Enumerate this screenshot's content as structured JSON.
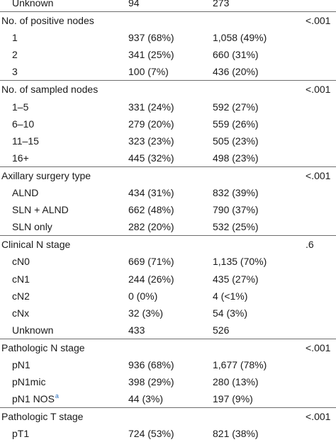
{
  "rows": [
    {
      "kind": "item",
      "label": "Unknown",
      "a": "94",
      "b": "273",
      "p": ""
    },
    {
      "kind": "section",
      "label": "No. of positive nodes",
      "a": "",
      "b": "",
      "p": "<.001"
    },
    {
      "kind": "item",
      "label": "1",
      "a": "937 (68%)",
      "b": "1,058 (49%)",
      "p": ""
    },
    {
      "kind": "item",
      "label": "2",
      "a": "341 (25%)",
      "b": "660 (31%)",
      "p": ""
    },
    {
      "kind": "item",
      "label": "3",
      "a": "100 (7%)",
      "b": "436 (20%)",
      "p": ""
    },
    {
      "kind": "section",
      "label": "No. of sampled nodes",
      "a": "",
      "b": "",
      "p": "<.001"
    },
    {
      "kind": "item",
      "label": "1–5",
      "a": "331 (24%)",
      "b": "592 (27%)",
      "p": ""
    },
    {
      "kind": "item",
      "label": "6–10",
      "a": "279 (20%)",
      "b": "559 (26%)",
      "p": ""
    },
    {
      "kind": "item",
      "label": "11–15",
      "a": "323 (23%)",
      "b": "505 (23%)",
      "p": ""
    },
    {
      "kind": "item",
      "label": "16+",
      "a": "445 (32%)",
      "b": "498 (23%)",
      "p": ""
    },
    {
      "kind": "section",
      "label": "Axillary surgery type",
      "a": "",
      "b": "",
      "p": "<.001"
    },
    {
      "kind": "item",
      "label": "ALND",
      "a": "434 (31%)",
      "b": "832 (39%)",
      "p": ""
    },
    {
      "kind": "item",
      "label": "SLN + ALND",
      "a": "662 (48%)",
      "b": "790 (37%)",
      "p": ""
    },
    {
      "kind": "item",
      "label": "SLN only",
      "a": "282 (20%)",
      "b": "532 (25%)",
      "p": ""
    },
    {
      "kind": "section",
      "label": "Clinical N stage",
      "a": "",
      "b": "",
      "p": ".6"
    },
    {
      "kind": "item",
      "label": "cN0",
      "a": "669 (71%)",
      "b": "1,135 (70%)",
      "p": ""
    },
    {
      "kind": "item",
      "label": "cN1",
      "a": "244 (26%)",
      "b": "435 (27%)",
      "p": ""
    },
    {
      "kind": "item",
      "label": "cN2",
      "a": "0 (0%)",
      "b": "4 (<1%)",
      "p": ""
    },
    {
      "kind": "item",
      "label": "cNx",
      "a": "32 (3%)",
      "b": "54 (3%)",
      "p": ""
    },
    {
      "kind": "item",
      "label": "Unknown",
      "a": "433",
      "b": "526",
      "p": ""
    },
    {
      "kind": "section",
      "label": "Pathologic N stage",
      "a": "",
      "b": "",
      "p": "<.001"
    },
    {
      "kind": "item",
      "label": "pN1",
      "a": "936 (68%)",
      "b": "1,677 (78%)",
      "p": ""
    },
    {
      "kind": "item",
      "label": "pN1mic",
      "a": "398 (29%)",
      "b": "280 (13%)",
      "p": ""
    },
    {
      "kind": "item",
      "label": "pN1 NOS",
      "note": "a",
      "a": "44 (3%)",
      "b": "197 (9%)",
      "p": ""
    },
    {
      "kind": "section",
      "label": "Pathologic T stage",
      "a": "",
      "b": "",
      "p": "<.001"
    },
    {
      "kind": "item",
      "label": "pT1",
      "a": "724 (53%)",
      "b": "821 (38%)",
      "p": ""
    }
  ]
}
